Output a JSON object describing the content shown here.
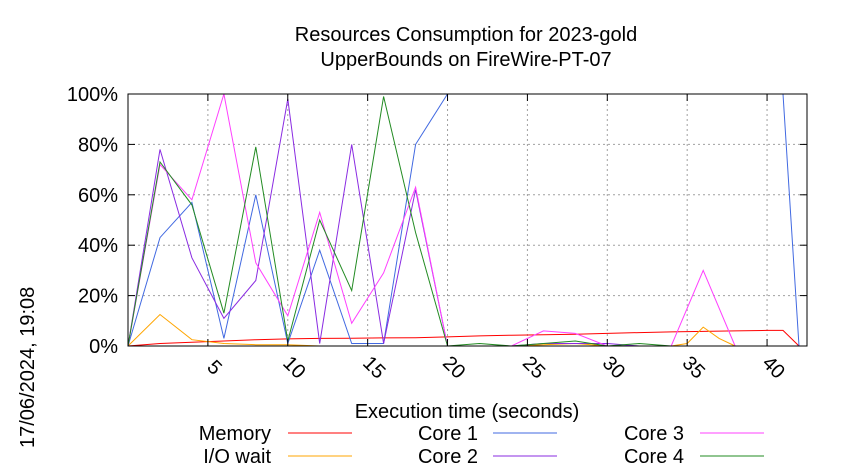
{
  "timestamp": "17/06/2024, 19:08",
  "chart_data": {
    "type": "line",
    "title": "Resources Consumption for 2023-gold",
    "subtitle": "UpperBounds on FireWire-PT-07",
    "xlabel": "Execution time (seconds)",
    "ylabel": "",
    "xlim": [
      0,
      42.5
    ],
    "ylim": [
      0,
      100
    ],
    "x_ticks": [
      5,
      10,
      15,
      20,
      25,
      30,
      35,
      40
    ],
    "y_ticks": [
      {
        "value": 0,
        "label": "0%"
      },
      {
        "value": 20,
        "label": "20%"
      },
      {
        "value": 40,
        "label": "40%"
      },
      {
        "value": 60,
        "label": "60%"
      },
      {
        "value": 80,
        "label": "80%"
      },
      {
        "value": 100,
        "label": "100%"
      }
    ],
    "grid": true,
    "legend_position": "bottom",
    "series": [
      {
        "name": "Memory",
        "color": "#ff0000",
        "points": [
          [
            0,
            0
          ],
          [
            2,
            1
          ],
          [
            4,
            1.5
          ],
          [
            6,
            2
          ],
          [
            8,
            2.5
          ],
          [
            10,
            2.8
          ],
          [
            12,
            3
          ],
          [
            14,
            3.1
          ],
          [
            16,
            3.2
          ],
          [
            18,
            3.3
          ],
          [
            20,
            3.6
          ],
          [
            22,
            4
          ],
          [
            24,
            4.3
          ],
          [
            26,
            4.5
          ],
          [
            28,
            4.7
          ],
          [
            30,
            5
          ],
          [
            32,
            5.3
          ],
          [
            34,
            5.6
          ],
          [
            36,
            5.8
          ],
          [
            38,
            6
          ],
          [
            40,
            6.2
          ],
          [
            41,
            6.2
          ],
          [
            42,
            0
          ]
        ]
      },
      {
        "name": "I/O wait",
        "color": "#ffa500",
        "points": [
          [
            0,
            0
          ],
          [
            2,
            12.5
          ],
          [
            4,
            2.5
          ],
          [
            6,
            1
          ],
          [
            8,
            0.5
          ],
          [
            10,
            0.5
          ],
          [
            12,
            0
          ],
          [
            14,
            0
          ],
          [
            16,
            0
          ],
          [
            18,
            0
          ],
          [
            20,
            0
          ],
          [
            22,
            0
          ],
          [
            24,
            0
          ],
          [
            26,
            0.5
          ],
          [
            28,
            1
          ],
          [
            30,
            0
          ],
          [
            32,
            0
          ],
          [
            34,
            0
          ],
          [
            35,
            1
          ],
          [
            36,
            7.5
          ],
          [
            37,
            3
          ],
          [
            38,
            0
          ]
        ]
      },
      {
        "name": "Core 1",
        "color": "#4169e1",
        "points": [
          [
            0,
            0
          ],
          [
            2,
            43
          ],
          [
            4,
            57
          ],
          [
            6,
            3
          ],
          [
            8,
            60
          ],
          [
            10,
            1
          ],
          [
            12,
            38
          ],
          [
            14,
            1
          ],
          [
            16,
            1
          ],
          [
            18,
            80
          ],
          [
            20,
            100
          ],
          [
            25,
            100
          ],
          [
            30,
            100
          ],
          [
            35,
            100
          ],
          [
            40,
            100
          ],
          [
            41,
            100
          ],
          [
            42,
            0
          ]
        ]
      },
      {
        "name": "Core 2",
        "color": "#8a2be2",
        "points": [
          [
            0,
            0
          ],
          [
            2,
            78
          ],
          [
            4,
            35
          ],
          [
            6,
            11
          ],
          [
            8,
            26
          ],
          [
            10,
            98
          ],
          [
            12,
            1
          ],
          [
            14,
            80
          ],
          [
            16,
            1
          ],
          [
            18,
            62
          ],
          [
            20,
            0
          ],
          [
            22,
            0
          ],
          [
            24,
            0
          ],
          [
            26,
            1
          ],
          [
            28,
            1
          ],
          [
            30,
            1
          ],
          [
            32,
            0
          ],
          [
            34,
            0
          ],
          [
            36,
            0
          ],
          [
            38,
            0
          ]
        ]
      },
      {
        "name": "Core 3",
        "color": "#ff40ff",
        "points": [
          [
            0,
            0
          ],
          [
            2,
            72
          ],
          [
            4,
            58
          ],
          [
            6,
            100
          ],
          [
            8,
            33
          ],
          [
            10,
            12
          ],
          [
            12,
            53
          ],
          [
            14,
            9
          ],
          [
            16,
            29
          ],
          [
            18,
            63
          ],
          [
            20,
            0
          ],
          [
            22,
            0
          ],
          [
            24,
            0
          ],
          [
            26,
            6
          ],
          [
            28,
            5
          ],
          [
            30,
            0
          ],
          [
            32,
            0
          ],
          [
            34,
            0
          ],
          [
            36,
            30
          ],
          [
            38,
            0
          ]
        ]
      },
      {
        "name": "Core 4",
        "color": "#228b22",
        "points": [
          [
            0,
            0
          ],
          [
            2,
            73
          ],
          [
            4,
            56
          ],
          [
            6,
            13
          ],
          [
            8,
            79
          ],
          [
            10,
            2
          ],
          [
            12,
            50
          ],
          [
            14,
            22
          ],
          [
            16,
            99
          ],
          [
            18,
            45
          ],
          [
            20,
            0
          ],
          [
            22,
            1
          ],
          [
            24,
            0
          ],
          [
            26,
            1
          ],
          [
            28,
            2
          ],
          [
            30,
            0
          ],
          [
            32,
            1
          ],
          [
            34,
            0
          ],
          [
            36,
            0
          ],
          [
            38,
            0
          ]
        ]
      }
    ]
  }
}
